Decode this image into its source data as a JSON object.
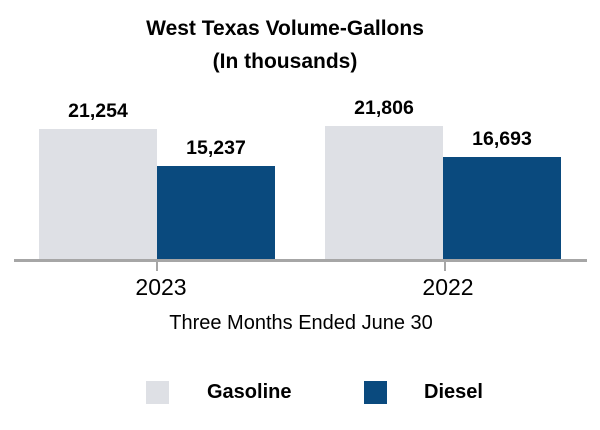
{
  "chart_data": {
    "type": "bar",
    "title": "West Texas Volume-Gallons",
    "subtitle": "(In thousands)",
    "categories": [
      "2023",
      "2022"
    ],
    "series": [
      {
        "name": "Gasoline",
        "values": [
          21254,
          21806
        ],
        "color": "#dee0e5"
      },
      {
        "name": "Diesel",
        "values": [
          15237,
          16693
        ],
        "color": "#0a4a7e"
      }
    ],
    "value_labels": [
      "21,254",
      "15,237",
      "21,806",
      "16,693"
    ],
    "xlabel": "Three Months Ended June 30",
    "ylim": [
      0,
      23000
    ],
    "y_axis_shown": false,
    "grid": false,
    "legend_position": "bottom",
    "colors": {
      "axis_line": "#a6a6a6",
      "text": "#000000",
      "background": "#ffffff"
    }
  }
}
